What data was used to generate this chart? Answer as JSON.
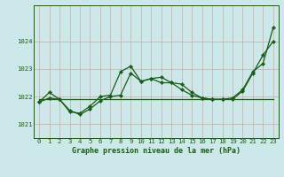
{
  "xlabel": "Graphe pression niveau de la mer (hPa)",
  "bg_color": "#cce8e8",
  "grid_color": "#ccaaaa",
  "line_color": "#1a5c1a",
  "xlim": [
    -0.5,
    23.5
  ],
  "ylim": [
    1020.5,
    1025.3
  ],
  "yticks": [
    1021,
    1022,
    1023,
    1024
  ],
  "xticks": [
    0,
    1,
    2,
    3,
    4,
    5,
    6,
    7,
    8,
    9,
    10,
    11,
    12,
    13,
    14,
    15,
    16,
    17,
    18,
    19,
    20,
    21,
    22,
    23
  ],
  "series1_x": [
    0,
    1,
    2,
    3,
    4,
    5,
    6,
    7,
    8,
    9,
    10,
    11,
    12,
    13,
    14,
    15,
    16,
    17,
    18,
    19,
    20,
    21,
    22,
    23
  ],
  "series1_y": [
    1021.8,
    1022.15,
    1021.9,
    1021.45,
    1021.4,
    1021.65,
    1022.0,
    1022.05,
    1022.9,
    1023.1,
    1022.55,
    1022.65,
    1022.7,
    1022.5,
    1022.45,
    1022.15,
    1021.95,
    1021.9,
    1021.9,
    1021.95,
    1022.25,
    1022.9,
    1023.2,
    1024.5
  ],
  "series2_x": [
    0,
    1,
    2,
    3,
    4,
    5,
    6,
    7,
    8,
    9,
    10,
    11,
    12,
    13,
    14,
    15,
    16,
    17,
    18,
    19,
    20,
    21,
    22,
    23
  ],
  "series2_y": [
    1021.8,
    1021.95,
    1021.9,
    1021.5,
    1021.35,
    1021.55,
    1021.85,
    1022.0,
    1022.05,
    1022.85,
    1022.55,
    1022.65,
    1022.5,
    1022.5,
    1022.25,
    1022.05,
    1021.95,
    1021.9,
    1021.9,
    1021.9,
    1022.2,
    1022.85,
    1023.5,
    1024.0
  ],
  "series3_x": [
    0,
    23
  ],
  "series3_y": [
    1021.9,
    1021.9
  ],
  "marker": "D",
  "markersize": 2.2,
  "linewidth": 0.9,
  "tick_fontsize": 5.2,
  "xlabel_fontsize": 6.0
}
